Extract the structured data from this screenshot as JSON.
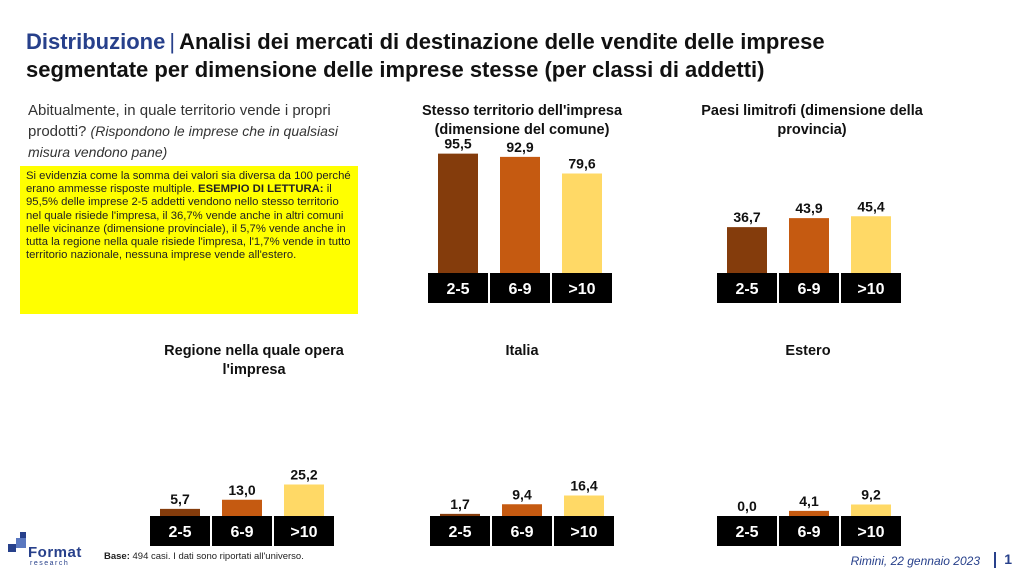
{
  "header": {
    "brand": "Distribuzione",
    "separator": "|",
    "title_line1": "Analisi dei mercati di destinazione delle vendite delle imprese",
    "title_line2": "segmentate per dimensione delle imprese stesse (per classi di addetti)"
  },
  "question": {
    "text": "Abitualmente, in quale territorio vende i propri prodotti?",
    "note": "(Rispondono le imprese che in qualsiasi misura vendono pane)"
  },
  "notebox": {
    "intro": "Si evidenzia come la somma dei valori sia diversa da 100 perché erano ammesse risposte multiple.",
    "label": "ESEMPIO DI LETTURA:",
    "body": "il 95,5% delle imprese 2-5 addetti vendono nello stesso territorio nel quale risiede l'impresa, il 36,7% vende anche in altri comuni nelle vicinanze (dimensione provinciale), il 5,7% vende anche in tutta la regione nella quale risiede l'impresa, l'1,7% vende in tutto territorio nazionale, nessuna imprese vende all'estero."
  },
  "colors": {
    "class_2_5": "#843c0c",
    "class_6_9": "#c55a11",
    "class_gt10": "#ffd966",
    "category_band": "#000000",
    "category_text": "#ffffff"
  },
  "chart_data": [
    {
      "type": "bar",
      "title": "Stesso territorio dell'impresa (dimensione del comune)",
      "categories": [
        "2-5",
        "6-9",
        ">10"
      ],
      "values": [
        95.5,
        92.9,
        79.6
      ],
      "labels": [
        "95,5",
        "92,9",
        "79,6"
      ],
      "ylim": [
        0,
        100
      ]
    },
    {
      "type": "bar",
      "title": "Paesi limitrofi (dimensione della provincia)",
      "categories": [
        "2-5",
        "6-9",
        ">10"
      ],
      "values": [
        36.7,
        43.9,
        45.4
      ],
      "labels": [
        "36,7",
        "43,9",
        "45,4"
      ],
      "ylim": [
        0,
        100
      ]
    },
    {
      "type": "bar",
      "title": "Regione nella quale opera l'impresa",
      "categories": [
        "2-5",
        "6-9",
        ">10"
      ],
      "values": [
        5.7,
        13.0,
        25.2
      ],
      "labels": [
        "5,7",
        "13,0",
        "25,2"
      ],
      "ylim": [
        0,
        100
      ]
    },
    {
      "type": "bar",
      "title": "Italia",
      "categories": [
        "2-5",
        "6-9",
        ">10"
      ],
      "values": [
        1.7,
        9.4,
        16.4
      ],
      "labels": [
        "1,7",
        "9,4",
        "16,4"
      ],
      "ylim": [
        0,
        100
      ]
    },
    {
      "type": "bar",
      "title": "Estero",
      "categories": [
        "2-5",
        "6-9",
        ">10"
      ],
      "values": [
        0.0,
        4.1,
        9.2
      ],
      "labels": [
        "0,0",
        "4,1",
        "9,2"
      ],
      "ylim": [
        0,
        100
      ]
    }
  ],
  "footer": {
    "base_label": "Base:",
    "base_text": "494 casi. I dati sono riportati all'universo.",
    "place_date": "Rimini, 22 gennaio 2023",
    "page": "1",
    "logo_word": "Format",
    "logo_sub": "research"
  }
}
